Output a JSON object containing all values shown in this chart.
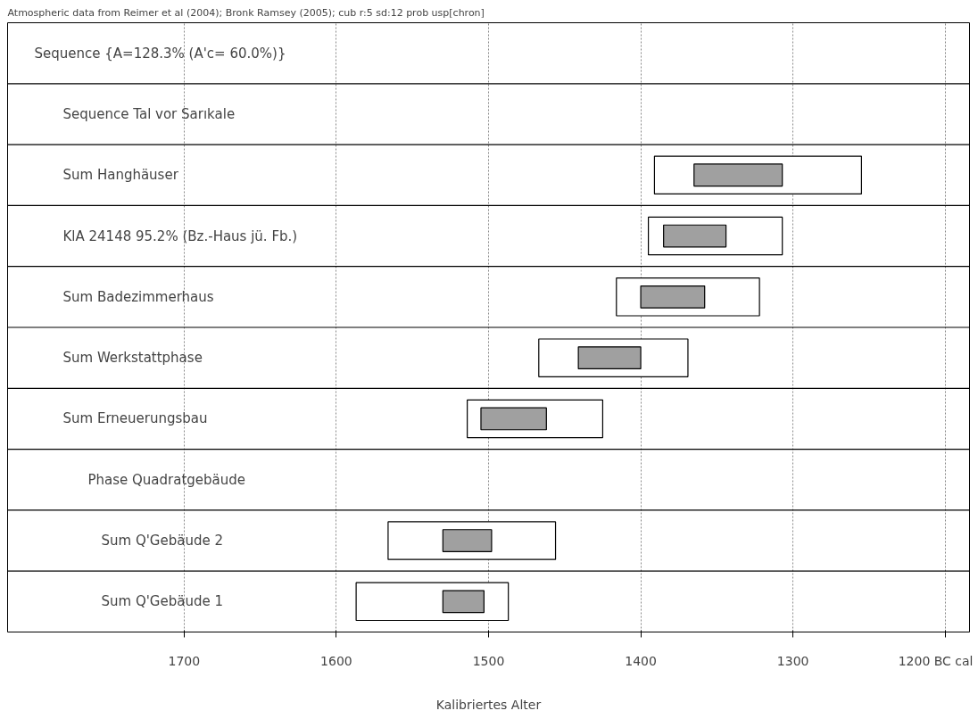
{
  "chart_data": {
    "type": "bar",
    "orientation": "horizontal",
    "annotations": [
      "Atmospheric data from Reimer et al (2004); Bronk Ramsey (2005); cub r:5 sd:12 prob usp[chron]"
    ],
    "xlabel": "Kalibriertes Alter",
    "categories": [
      "Sequence  {A=128.3% (A'c= 60.0%)}",
      "Sequence Tal vor Sarıkale",
      "Sum Hanghäuser",
      "KlA 24148   95.2% (Bz.-Haus jü. Fb.)",
      "Sum Badezimmerhaus",
      "Sum Werkstattphase",
      "Sum Erneuerungsbau",
      "Phase Quadratgebäude",
      "Sum Q'Gebäude 2",
      "Sum Q'Gebäude 1"
    ],
    "series": [
      {
        "color": "#ffffff",
        "base": [
          null,
          null,
          1255,
          1307,
          1322,
          1369,
          1425,
          null,
          1456,
          1487
        ],
        "values": [
          null,
          null,
          136,
          88,
          94,
          98,
          89,
          null,
          110,
          100
        ]
      },
      {
        "color": "#a0a0a0",
        "base": [
          null,
          null,
          1307,
          1344,
          1358,
          1400,
          1462,
          null,
          1498,
          1503
        ],
        "values": [
          null,
          null,
          58,
          41,
          42,
          41,
          43,
          null,
          32,
          27
        ]
      }
    ],
    "xlim": [
      1816,
      1184
    ],
    "xticks": [
      1700,
      1600,
      1500,
      1400,
      1300,
      {
        "value": 1200,
        "label": "1200 BC cal"
      }
    ],
    "grid": "x"
  }
}
